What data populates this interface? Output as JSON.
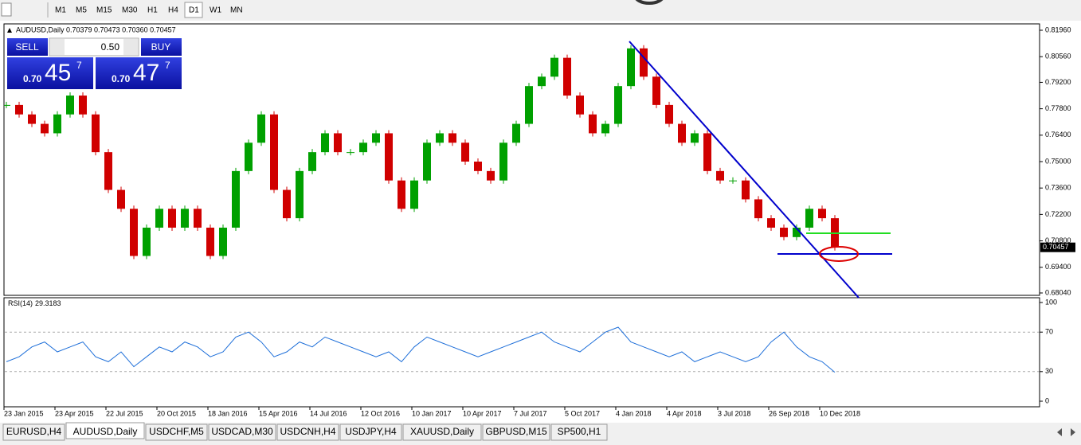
{
  "toolbar": {
    "timeframes": [
      "M1",
      "M5",
      "M15",
      "M30",
      "H1",
      "H4",
      "D1",
      "W1",
      "MN"
    ]
  },
  "main_chart": {
    "type": "candlestick",
    "symbol_info": "AUDUSD,Daily  0.70379 0.70473 0.70360 0.70457",
    "closes": [
      0.78,
      0.775,
      0.77,
      0.765,
      0.775,
      0.785,
      0.775,
      0.755,
      0.735,
      0.725,
      0.7,
      0.715,
      0.725,
      0.715,
      0.725,
      0.715,
      0.7,
      0.715,
      0.745,
      0.76,
      0.775,
      0.735,
      0.72,
      0.745,
      0.755,
      0.765,
      0.755,
      0.755,
      0.76,
      0.765,
      0.74,
      0.725,
      0.74,
      0.76,
      0.765,
      0.76,
      0.75,
      0.745,
      0.74,
      0.76,
      0.77,
      0.79,
      0.795,
      0.805,
      0.785,
      0.775,
      0.765,
      0.77,
      0.79,
      0.81,
      0.795,
      0.78,
      0.77,
      0.76,
      0.765,
      0.745,
      0.74,
      0.74,
      0.73,
      0.72,
      0.715,
      0.71,
      0.715,
      0.725,
      0.72,
      0.70457
    ],
    "up_color": "#00a000",
    "down_color": "#d00000",
    "ylim": [
      0.6804,
      0.8196
    ],
    "yticks": [
      {
        "value": 0.8196,
        "label": "0.81960"
      },
      {
        "value": 0.8056,
        "label": "0.80560"
      },
      {
        "value": 0.792,
        "label": "0.79200"
      },
      {
        "value": 0.778,
        "label": "0.77800"
      },
      {
        "value": 0.764,
        "label": "0.76400"
      },
      {
        "value": 0.75,
        "label": "0.75000"
      },
      {
        "value": 0.736,
        "label": "0.73600"
      },
      {
        "value": 0.722,
        "label": "0.72200"
      },
      {
        "value": 0.708,
        "label": "0.70800"
      },
      {
        "value": 0.694,
        "label": "0.69400"
      },
      {
        "value": 0.6804,
        "label": "0.68040"
      }
    ]
  },
  "rsi": {
    "name": "RSI(14)",
    "color": "#1e6fd9",
    "values": [
      40,
      45,
      55,
      60,
      50,
      55,
      60,
      45,
      40,
      50,
      35,
      45,
      55,
      50,
      60,
      55,
      45,
      50,
      65,
      70,
      60,
      45,
      50,
      60,
      55,
      65,
      60,
      55,
      50,
      45,
      50,
      40,
      55,
      65,
      60,
      55,
      50,
      45,
      50,
      55,
      60,
      65,
      70,
      60,
      55,
      50,
      60,
      70,
      75,
      60,
      55,
      50,
      45,
      50,
      40,
      45,
      50,
      45,
      40,
      45,
      60,
      70,
      55,
      45,
      40,
      29.3183
    ],
    "ylim": [
      0,
      100
    ],
    "yticks": [
      100,
      70,
      30,
      0
    ],
    "levels": [
      70,
      30
    ]
  },
  "x_labels": [
    "23 Jan 2015",
    "23 Apr 2015",
    "22 Jul 2015",
    "20 Oct 2015",
    "18 Jan 2016",
    "15 Apr 2016",
    "14 Jul 2016",
    "12 Oct 2016",
    "10 Jan 2017",
    "10 Apr 2017",
    "7 Jul 2017",
    "5 Oct 2017",
    "4 Jan 2018",
    "4 Apr 2018",
    "3 Jul 2018",
    "26 Sep 2018",
    "10 Dec 2018"
  ],
  "trade_panel": {
    "sell": "SELL",
    "buy": "BUY",
    "lot": "0.50",
    "bid": {
      "prefix": "0.70",
      "big": "45",
      "small": "7"
    },
    "ask": {
      "prefix": "0.70",
      "big": "47",
      "small": "7"
    }
  },
  "tabs": [
    "EURUSD,H4",
    "AUDUSD,Daily",
    "USDCHF,M5",
    "USDCAD,M30",
    "USDCNH,H4",
    "USDJPY,H4",
    "XAUUSD,Daily",
    "GBPUSD,M15",
    "SP500,H1"
  ]
}
